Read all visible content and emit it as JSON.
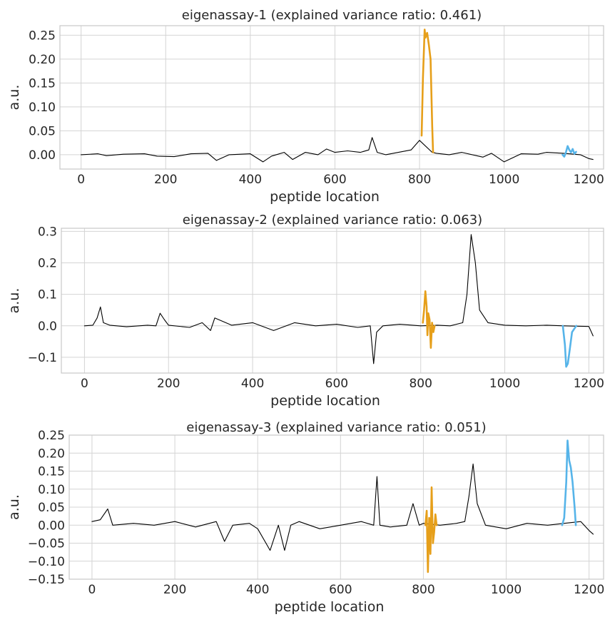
{
  "chart_data": [
    {
      "type": "line",
      "title": "eigenassay-1 (explained variance ratio: 0.461)",
      "xlabel": "peptide location",
      "ylabel": "a.u.",
      "xlim": [
        -50,
        1235
      ],
      "ylim": [
        -0.03,
        0.27
      ],
      "xticks": [
        0,
        200,
        400,
        600,
        800,
        1000,
        1200
      ],
      "yticks": [
        0.0,
        0.05,
        0.1,
        0.15,
        0.2,
        0.25
      ],
      "ytick_labels": [
        "0.00",
        "0.05",
        "0.10",
        "0.15",
        "0.20",
        "0.25"
      ],
      "grid": true,
      "series": [
        {
          "color": "#000000",
          "x": [
            0,
            40,
            60,
            100,
            150,
            180,
            220,
            260,
            300,
            320,
            350,
            400,
            430,
            450,
            480,
            500,
            530,
            560,
            580,
            600,
            630,
            660,
            680,
            688,
            700,
            720,
            750,
            780,
            800,
            830,
            840,
            870,
            900,
            950,
            970,
            1000,
            1040,
            1080,
            1100,
            1140,
            1180,
            1200,
            1210
          ],
          "y": [
            0.0,
            0.002,
            -0.002,
            0.001,
            0.002,
            -0.003,
            -0.004,
            0.002,
            0.003,
            -0.012,
            0.0,
            0.002,
            -0.015,
            -0.003,
            0.005,
            -0.01,
            0.005,
            0.0,
            0.012,
            0.005,
            0.008,
            0.005,
            0.01,
            0.036,
            0.005,
            0.0,
            0.005,
            0.01,
            0.03,
            0.005,
            0.003,
            0.0,
            0.005,
            -0.005,
            0.003,
            -0.015,
            0.002,
            0.001,
            0.005,
            0.003,
            0.0,
            -0.008,
            -0.01
          ]
        },
        {
          "color": "#e69f1a",
          "x": [
            805,
            808,
            812,
            814,
            818,
            822,
            826,
            830,
            832
          ],
          "y": [
            0.04,
            0.16,
            0.262,
            0.245,
            0.255,
            0.23,
            0.2,
            0.06,
            0.005
          ]
        },
        {
          "color": "#56b4e9",
          "x": [
            1138,
            1142,
            1146,
            1150,
            1154,
            1158,
            1162,
            1166,
            1170
          ],
          "y": [
            0.0,
            -0.004,
            0.005,
            0.018,
            0.01,
            0.005,
            0.012,
            0.002,
            0.006
          ]
        }
      ]
    },
    {
      "type": "line",
      "title": "eigenassay-2 (explained variance ratio: 0.063)",
      "xlabel": "peptide location",
      "ylabel": "a.u.",
      "xlim": [
        -55,
        1235
      ],
      "ylim": [
        -0.15,
        0.31
      ],
      "xticks": [
        0,
        200,
        400,
        600,
        800,
        1000,
        1200
      ],
      "yticks": [
        -0.1,
        0.0,
        0.1,
        0.2,
        0.3
      ],
      "ytick_labels": [
        "−0.1",
        "0.0",
        "0.1",
        "0.2",
        "0.3"
      ],
      "grid": true,
      "series": [
        {
          "color": "#000000",
          "x": [
            0,
            20,
            30,
            38,
            45,
            60,
            100,
            150,
            170,
            180,
            190,
            200,
            250,
            280,
            300,
            310,
            350,
            400,
            450,
            500,
            550,
            600,
            650,
            680,
            688,
            695,
            710,
            750,
            800,
            840,
            870,
            900,
            910,
            920,
            930,
            940,
            960,
            1000,
            1050,
            1100,
            1140,
            1200,
            1210
          ],
          "y": [
            0.0,
            0.002,
            0.025,
            0.06,
            0.01,
            0.002,
            -0.003,
            0.002,
            0.0,
            0.04,
            0.02,
            0.002,
            -0.005,
            0.01,
            -0.015,
            0.025,
            0.002,
            0.01,
            -0.015,
            0.01,
            0.0,
            0.005,
            -0.005,
            0.0,
            -0.12,
            -0.02,
            0.0,
            0.005,
            0.0,
            0.002,
            0.0,
            0.01,
            0.1,
            0.29,
            0.2,
            0.05,
            0.01,
            0.002,
            0.0,
            0.002,
            0.0,
            -0.002,
            -0.032
          ]
        },
        {
          "color": "#e69f1a",
          "x": [
            805,
            808,
            811,
            814,
            816,
            818,
            821,
            824,
            827,
            830,
            833
          ],
          "y": [
            0.01,
            0.05,
            0.11,
            0.06,
            -0.03,
            0.04,
            0.02,
            -0.07,
            0.01,
            -0.02,
            0.0
          ]
        },
        {
          "color": "#56b4e9",
          "x": [
            1138,
            1143,
            1146,
            1150,
            1155,
            1160,
            1165,
            1170
          ],
          "y": [
            0.0,
            -0.06,
            -0.13,
            -0.12,
            -0.07,
            -0.02,
            -0.01,
            0.0
          ]
        }
      ]
    },
    {
      "type": "line",
      "title": "eigenassay-3 (explained variance ratio: 0.051)",
      "xlabel": "peptide location",
      "ylabel": "a.u.",
      "xlim": [
        -55,
        1235
      ],
      "ylim": [
        -0.15,
        0.25
      ],
      "xticks": [
        0,
        200,
        400,
        600,
        800,
        1000,
        1200
      ],
      "yticks": [
        -0.15,
        -0.1,
        -0.05,
        0.0,
        0.05,
        0.1,
        0.15,
        0.2,
        0.25
      ],
      "ytick_labels": [
        "−0.15",
        "−0.10",
        "−0.05",
        "0.00",
        "0.05",
        "0.10",
        "0.15",
        "0.20",
        "0.25"
      ],
      "grid": true,
      "series": [
        {
          "color": "#000000",
          "x": [
            0,
            20,
            38,
            50,
            100,
            150,
            200,
            250,
            300,
            320,
            340,
            380,
            400,
            430,
            450,
            465,
            480,
            500,
            550,
            600,
            650,
            680,
            688,
            695,
            720,
            760,
            775,
            790,
            800,
            840,
            880,
            900,
            910,
            920,
            930,
            950,
            1000,
            1050,
            1100,
            1140,
            1180,
            1200,
            1210
          ],
          "y": [
            0.01,
            0.015,
            0.045,
            0.0,
            0.005,
            0.0,
            0.01,
            -0.005,
            0.01,
            -0.045,
            0.0,
            0.005,
            -0.01,
            -0.07,
            0.0,
            -0.07,
            0.0,
            0.01,
            -0.01,
            0.0,
            0.01,
            0.0,
            0.135,
            0.0,
            -0.005,
            0.0,
            0.06,
            0.0,
            0.005,
            0.0,
            0.005,
            0.01,
            0.08,
            0.17,
            0.06,
            0.0,
            -0.01,
            0.005,
            0.0,
            0.005,
            0.01,
            -0.015,
            -0.025
          ]
        },
        {
          "color": "#e69f1a",
          "x": [
            805,
            808,
            811,
            814,
            817,
            820,
            823,
            826,
            829,
            832
          ],
          "y": [
            0.0,
            0.04,
            -0.13,
            0.02,
            -0.08,
            0.105,
            -0.05,
            -0.02,
            0.03,
            0.0
          ]
        },
        {
          "color": "#56b4e9",
          "x": [
            1135,
            1140,
            1145,
            1148,
            1152,
            1156,
            1160,
            1165,
            1168
          ],
          "y": [
            0.0,
            0.02,
            0.12,
            0.235,
            0.18,
            0.16,
            0.12,
            0.05,
            0.0
          ]
        }
      ]
    }
  ]
}
